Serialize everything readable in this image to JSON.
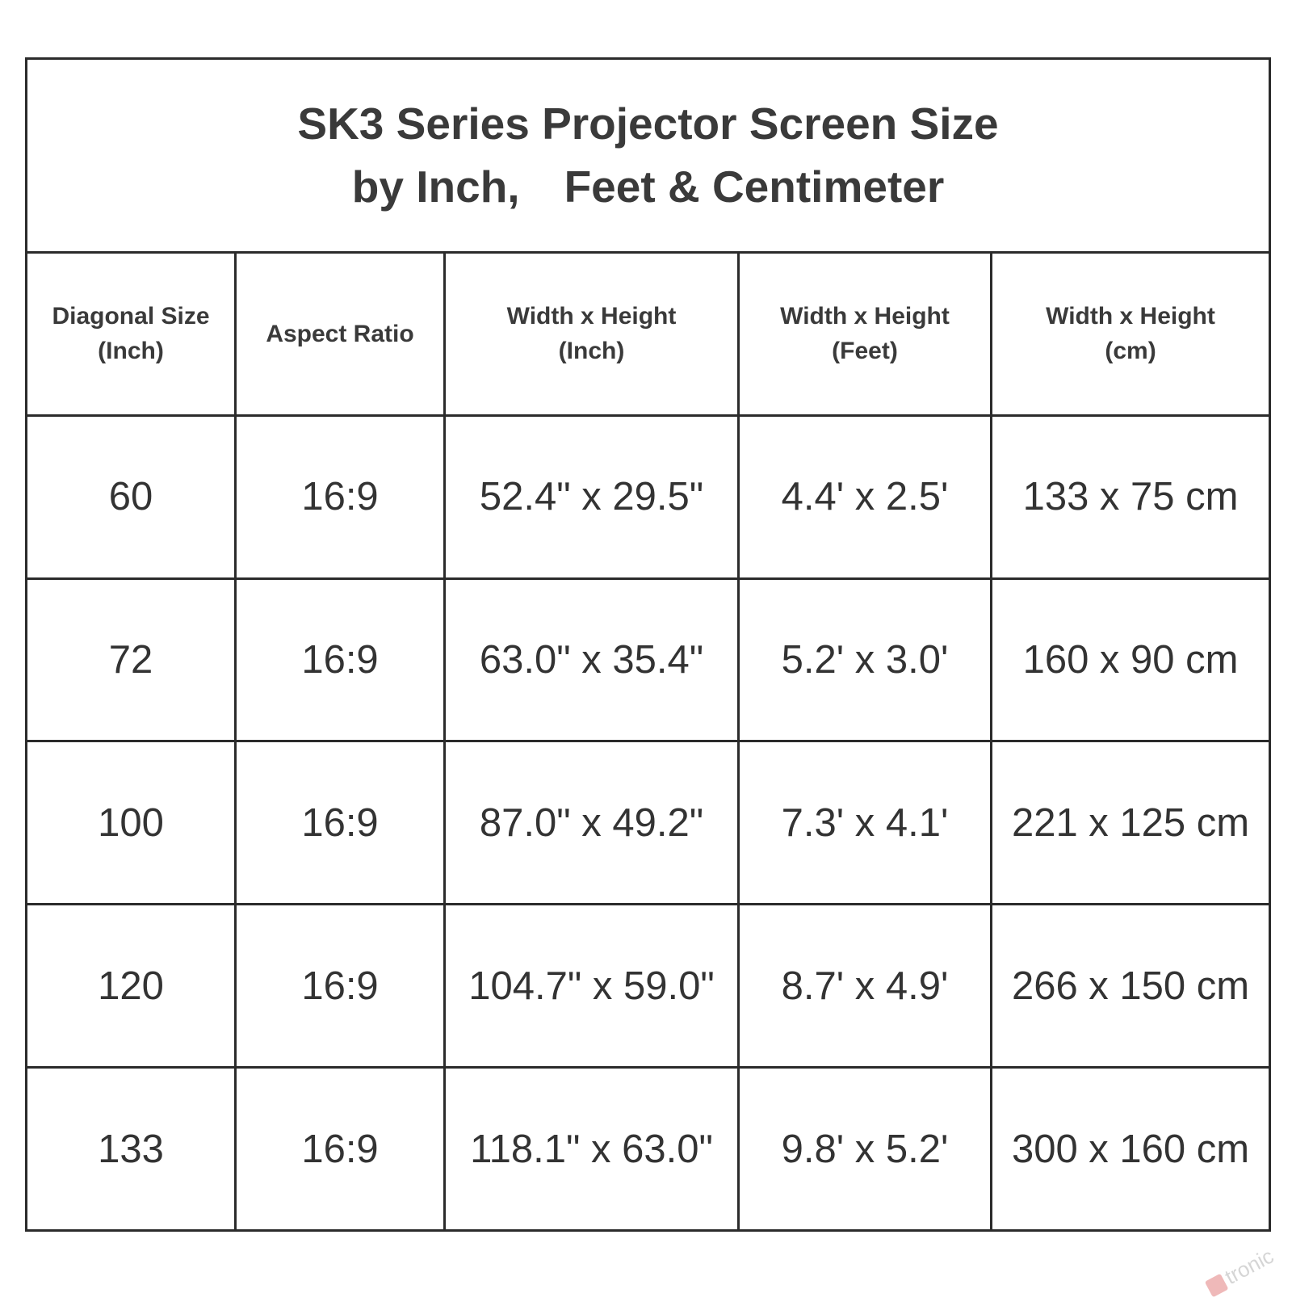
{
  "title": {
    "line1": "SK3 Series Projector Screen Size",
    "line2": "by Inch,　Feet & Centimeter"
  },
  "columns": [
    {
      "line1": "Diagonal Size",
      "line2": "(Inch)"
    },
    {
      "line1": "Aspect Ratio",
      "line2": ""
    },
    {
      "line1": "Width x Height",
      "line2": "(Inch)"
    },
    {
      "line1": "Width x Height",
      "line2": "(Feet)"
    },
    {
      "line1": "Width x Height",
      "line2": "(cm)"
    }
  ],
  "rows": [
    [
      "60",
      "16:9",
      "52.4\" x 29.5\"",
      "4.4' x 2.5'",
      "133 x 75 cm"
    ],
    [
      "72",
      "16:9",
      "63.0\" x 35.4\"",
      "5.2' x 3.0'",
      "160 x 90 cm"
    ],
    [
      "100",
      "16:9",
      "87.0\" x 49.2\"",
      "7.3' x 4.1'",
      "221 x 125 cm"
    ],
    [
      "120",
      "16:9",
      "104.7\" x 59.0\"",
      "8.7' x 4.9'",
      "266 x 150 cm"
    ],
    [
      "133",
      "16:9",
      "118.1\" x 63.0\"",
      "9.8' x 5.2'",
      "300 x 160 cm"
    ]
  ],
  "watermark": {
    "text": "tronic",
    "mark_color": "#d33a3a"
  }
}
